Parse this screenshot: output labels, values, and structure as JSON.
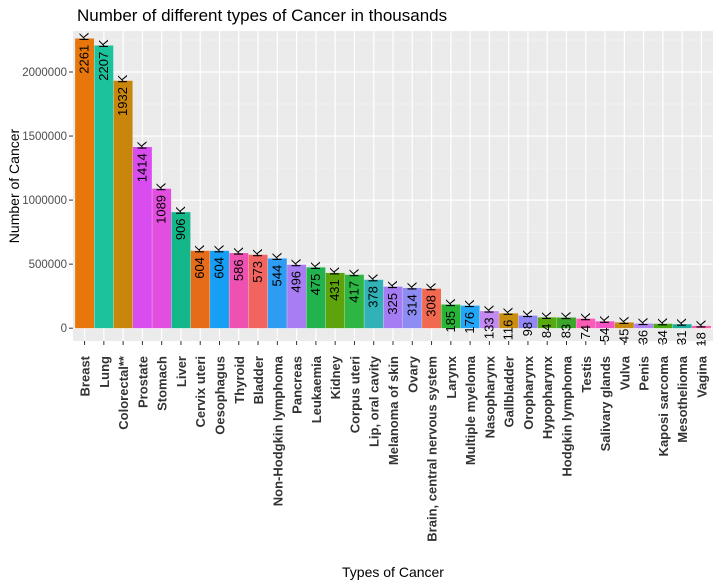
{
  "chart_data": {
    "type": "bar",
    "title": "Number of different types of Cancer in thousands",
    "xlabel": "Types of Cancer",
    "ylabel": "Number of Cancer",
    "ylim": [
      -100000,
      2320000
    ],
    "yticks": [
      0,
      500000,
      1000000,
      1500000,
      2000000
    ],
    "ytick_labels": [
      "0",
      "500000",
      "1000000",
      "1500000",
      "2000000"
    ],
    "grid": true,
    "legend": "none",
    "label_suffix": " K",
    "categories": [
      "Breast",
      "Lung",
      "Colorectal**",
      "Prostate",
      "Stomach",
      "Liver",
      "Cervix uteri",
      "Oesophagus",
      "Thyroid",
      "Bladder",
      "Non-Hodgkin lymphoma",
      "Pancreas",
      "Leukaemia",
      "Kidney",
      "Corpus uteri",
      "Lip, oral cavity",
      "Melanoma of skin",
      "Ovary",
      "Brain, central nervous system",
      "Larynx",
      "Multiple myeloma",
      "Nasopharynx",
      "Gallbladder",
      "Oropharynx",
      "Hypopharynx",
      "Hodgkin lymphoma",
      "Testis",
      "Salivary glands",
      "Vulva",
      "Penis",
      "Kaposi sarcoma",
      "Mesothelioma",
      "Vagina"
    ],
    "values": [
      2261419,
      2206771,
      1931590,
      1414259,
      1089103,
      905677,
      604127,
      604100,
      586202,
      573278,
      544352,
      495773,
      474519,
      431288,
      417367,
      377713,
      324635,
      313959,
      308102,
      184615,
      176404,
      133354,
      115949,
      98412,
      84254,
      83087,
      74458,
      53583,
      45240,
      36068,
      34270,
      30870,
      17908
    ],
    "labels": [
      "2261",
      "2207",
      "1932",
      "1414",
      "1089",
      "906",
      "604",
      "604",
      "586",
      "573",
      "544",
      "496",
      "475",
      "431",
      "417",
      "378",
      "325",
      "314",
      "308",
      "185",
      "176",
      "133",
      "116",
      "98",
      "84",
      "83",
      "74",
      "54",
      "45",
      "36",
      "34",
      "31",
      "18"
    ],
    "colors": [
      "#E7760B",
      "#1BC29B",
      "#C8860D",
      "#D84CF0",
      "#E34EE0",
      "#14B78A",
      "#E56C18",
      "#179EF5",
      "#EE51B2",
      "#F16460",
      "#2E9CF3",
      "#A87DF3",
      "#22B34E",
      "#5DA30B",
      "#2DB644",
      "#31B2B6",
      "#A67CF5",
      "#8C8CF3",
      "#F2694F",
      "#28B434",
      "#22A7F8",
      "#C38AF2",
      "#C98E10",
      "#9287F6",
      "#56A90F",
      "#3AA728",
      "#FD5BB5",
      "#F356C2",
      "#C58A0E",
      "#AF83F4",
      "#47A811",
      "#1AAD9B",
      "#FA5EA6"
    ]
  }
}
